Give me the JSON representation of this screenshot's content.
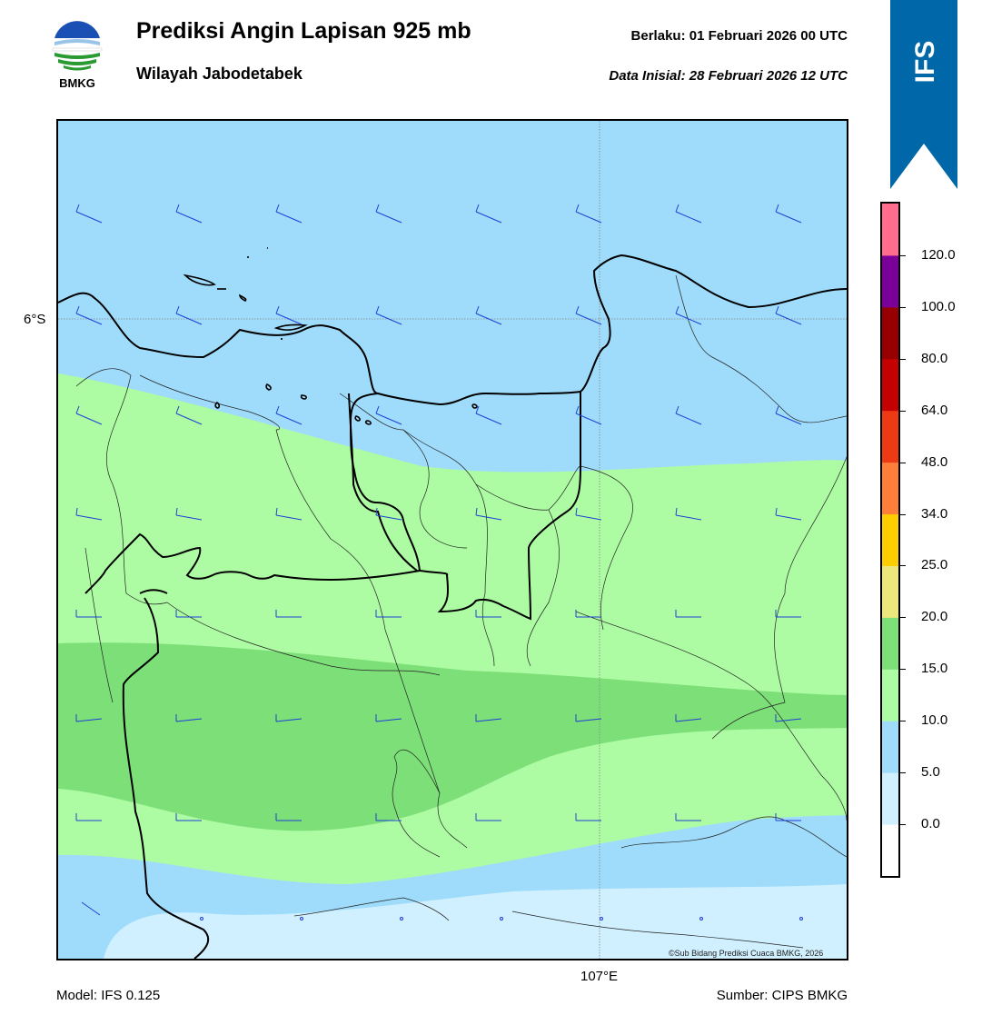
{
  "header": {
    "title": "Prediksi Angin Lapisan 925 mb",
    "subtitle": "Wilayah Jabodetabek",
    "valid_label": "Berlaku:  01 Februari 2026 00 UTC",
    "init_label": "Data Inisial:  28 Februari 2026 12 UTC",
    "logo_text": "BMKG",
    "model_badge": "IFS"
  },
  "map": {
    "lat_label": "6°S",
    "lon_label": "107°E",
    "credit": "©Sub Bidang Prediksi Cuaca BMKG, 2026",
    "wind_barb_color": "#1f3fd6",
    "coastline_color": "#000000"
  },
  "footer": {
    "model": "Model: IFS 0.125",
    "source": "Sumber: CIPS BMKG"
  },
  "colorbar": {
    "ticks": [
      "0.0",
      "5.0",
      "10.0",
      "15.0",
      "20.0",
      "25.0",
      "34.0",
      "48.0",
      "64.0",
      "80.0",
      "100.0",
      "120.0"
    ],
    "colors": [
      "#ffffff",
      "#d0f0ff",
      "#9fdcfb",
      "#adfca3",
      "#7ddf78",
      "#ece77a",
      "#ffce00",
      "#ff7f3a",
      "#ee3a14",
      "#c40000",
      "#960000",
      "#7a0099",
      "#ff6c8c"
    ]
  }
}
